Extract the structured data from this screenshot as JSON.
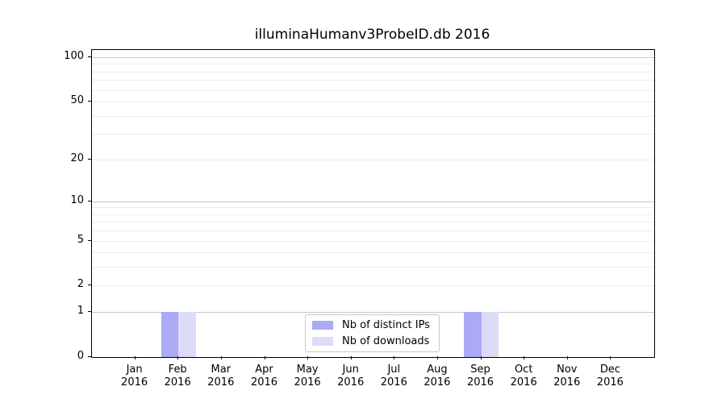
{
  "chart_data": {
    "type": "bar",
    "title": "illuminaHumanv3ProbeID.db 2016",
    "categories": [
      "Jan",
      "Feb",
      "Mar",
      "Apr",
      "May",
      "Jun",
      "Jul",
      "Aug",
      "Sep",
      "Oct",
      "Nov",
      "Dec"
    ],
    "category_year": "2016",
    "series": [
      {
        "name": "Nb of distinct IPs",
        "color": "#aaaaf5",
        "values": [
          0,
          1,
          0,
          0,
          0,
          0,
          0,
          0,
          1,
          0,
          0,
          0
        ]
      },
      {
        "name": "Nb of downloads",
        "color": "#dcdcf8",
        "values": [
          0,
          1,
          0,
          0,
          0,
          0,
          0,
          0,
          1,
          0,
          0,
          0
        ]
      }
    ],
    "xlabel": "",
    "ylabel": "",
    "y_axis": {
      "scale": "log1p",
      "ylim": [
        0,
        112
      ],
      "labeled_ticks": [
        0,
        1,
        2,
        5,
        10,
        20,
        50,
        100
      ],
      "major_gridlines": [
        1,
        10,
        100
      ],
      "minor_gridlines": [
        2,
        3,
        4,
        5,
        6,
        7,
        8,
        9,
        20,
        30,
        40,
        50,
        60,
        70,
        80,
        90
      ]
    },
    "grid": true,
    "legend_position": "lower center",
    "colors": {
      "major_grid": "#c6c6c6",
      "minor_grid": "#ededed",
      "spine": "#000000",
      "text": "#000000"
    }
  }
}
